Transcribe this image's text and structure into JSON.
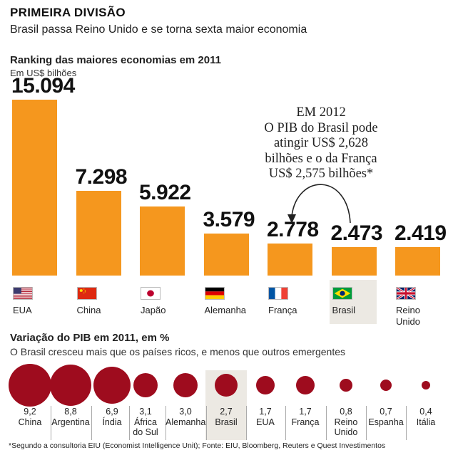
{
  "header": {
    "title": "PRIMEIRA DIVISÃO",
    "subtitle": "Brasil passa Reino Unido e se torna sexta maior economia"
  },
  "ranking": {
    "title": "Ranking das maiores economias em 2011",
    "unit": "Em US$ bilhões"
  },
  "callout": {
    "line1": "EM 2012",
    "line2": "O PIB do Brasil pode",
    "line3": "atingir US$ 2,628",
    "line4": "bilhões e o da França",
    "line5": "US$ 2,575 bilhões*"
  },
  "variation": {
    "title": "Variação do PIB em 2011, em %",
    "subtitle": "O Brasil cresceu mais que os países ricos, e menos que outros emergentes"
  },
  "footnote": "*Segundo a consultoria EIU (Economist Intelligence Unit); Fonte: EIU, Bloomberg, Reuters e Quest Investimentos",
  "colors": {
    "bar": "#f5971e",
    "bubble": "#9e0c1e",
    "highlight": "#ece9e3"
  },
  "chart_data": [
    {
      "type": "bar",
      "title": "Ranking das maiores economias em 2011",
      "ylabel": "Em US$ bilhões",
      "categories": [
        "EUA",
        "China",
        "Japão",
        "Alemanha",
        "França",
        "Brasil",
        "Reino Unido"
      ],
      "category_lines": [
        [
          "EUA"
        ],
        [
          "China"
        ],
        [
          "Japão"
        ],
        [
          "Alemanha"
        ],
        [
          "França"
        ],
        [
          "Brasil"
        ],
        [
          "Reino",
          "Unido"
        ]
      ],
      "value_labels": [
        "15.094",
        "7.298",
        "5.922",
        "3.579",
        "2.778",
        "2.473",
        "2.419"
      ],
      "values": [
        15094,
        7298,
        5922,
        3579,
        2778,
        2473,
        2419
      ],
      "flags": [
        "us-flag-icon",
        "china-flag-icon",
        "japan-flag-icon",
        "germany-flag-icon",
        "france-flag-icon",
        "brazil-flag-icon",
        "uk-flag-icon"
      ],
      "highlight": "Brasil"
    },
    {
      "type": "scatter",
      "title": "Variação do PIB em 2011, em %",
      "categories": [
        "China",
        "Argentina",
        "Índia",
        "África do Sul",
        "Alemanha",
        "Brasil",
        "EUA",
        "França",
        "Reino Unido",
        "Espanha",
        "Itália"
      ],
      "category_lines": [
        [
          "China"
        ],
        [
          "Argentina"
        ],
        [
          "Índia"
        ],
        [
          "África",
          "do Sul"
        ],
        [
          "Alemanha"
        ],
        [
          "Brasil"
        ],
        [
          "EUA"
        ],
        [
          "França"
        ],
        [
          "Reino",
          "Unido"
        ],
        [
          "Espanha"
        ],
        [
          "Itália"
        ]
      ],
      "value_labels": [
        "9,2",
        "8,8",
        "6,9",
        "3,1",
        "3,0",
        "2,7",
        "1,7",
        "1,7",
        "0,8",
        "0,7",
        "0,4"
      ],
      "values": [
        9.2,
        8.8,
        6.9,
        3.1,
        3.0,
        2.7,
        1.7,
        1.7,
        0.8,
        0.7,
        0.4
      ],
      "highlight": "Brasil"
    }
  ]
}
